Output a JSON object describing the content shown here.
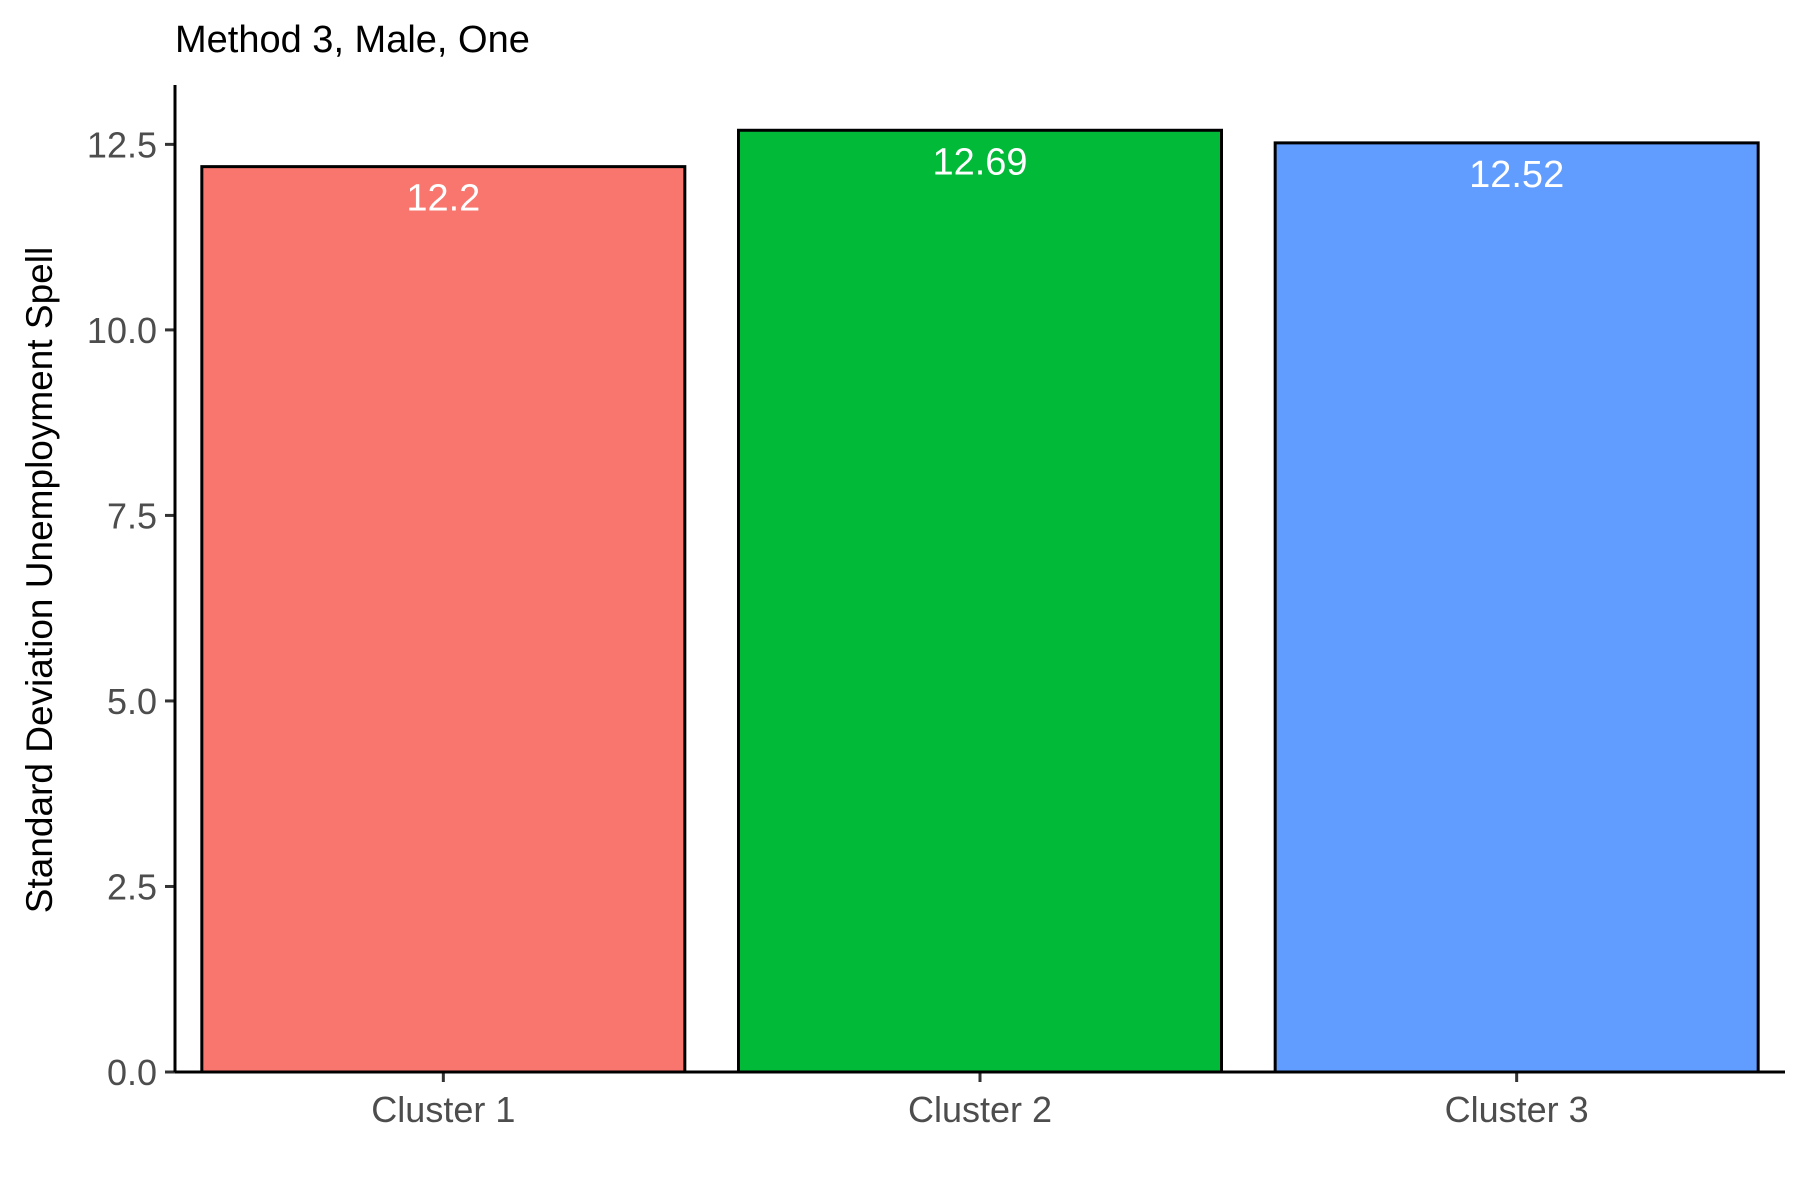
{
  "chart_data": {
    "type": "bar",
    "title": "Method 3, Male, One",
    "xlabel": "",
    "ylabel": "Standard Deviation Unemployment Spell",
    "categories": [
      "Cluster 1",
      "Cluster 2",
      "Cluster 3"
    ],
    "values": [
      12.2,
      12.69,
      12.52
    ],
    "data_labels": [
      "12.2",
      "12.69",
      "12.52"
    ],
    "colors": [
      "#F8766D",
      "#00BA38",
      "#619CFF"
    ],
    "yticks": [
      0.0,
      2.5,
      5.0,
      7.5,
      10.0,
      12.5
    ],
    "ytick_labels": [
      "0.0",
      "2.5",
      "5.0",
      "7.5",
      "10.0",
      "12.5"
    ],
    "ylim": [
      0,
      13.3
    ],
    "grid": false,
    "legend": "none"
  }
}
